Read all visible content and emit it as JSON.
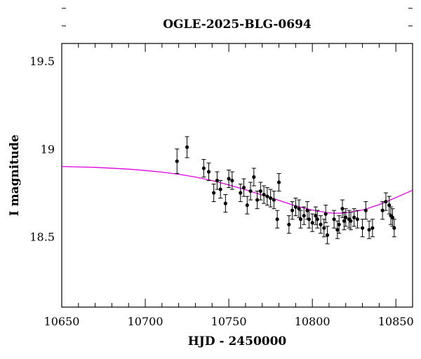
{
  "chart_data": {
    "type": "scatter",
    "title": "OGLE-2025-BLG-0694",
    "xlabel": "HJD - 2450000",
    "ylabel": "I magnitude",
    "xlim": [
      10650,
      10860
    ],
    "ylim": [
      19.6,
      18.1
    ],
    "y_inverted": true,
    "grid": false,
    "legend": "none",
    "x_major_ticks": [
      10650,
      10700,
      10750,
      10800,
      10850
    ],
    "x_tick_labels": [
      "10650",
      "10700",
      "10750",
      "10800",
      "10850"
    ],
    "y_major_ticks": [
      18.5,
      19,
      19.5
    ],
    "y_tick_labels": [
      "18.5",
      "19",
      "19.5"
    ],
    "model_color": "#e000e0",
    "model": {
      "x": [
        10650,
        10670,
        10690,
        10700,
        10710,
        10720,
        10730,
        10740,
        10750,
        10760,
        10770,
        10780,
        10790,
        10800,
        10810,
        10815,
        10820,
        10830,
        10840,
        10850,
        10860
      ],
      "y": [
        18.9,
        18.895,
        18.885,
        18.877,
        18.868,
        18.856,
        18.84,
        18.82,
        18.795,
        18.768,
        18.738,
        18.707,
        18.676,
        18.652,
        18.636,
        18.634,
        18.636,
        18.652,
        18.683,
        18.723,
        18.765
      ]
    },
    "points": {
      "x": [
        10719,
        10725,
        10735,
        10738,
        10741,
        10743,
        10745,
        10748,
        10750,
        10752,
        10757,
        10759,
        10761,
        10763,
        10765,
        10767,
        10769,
        10771,
        10773,
        10775,
        10777,
        10779,
        10780,
        10786,
        10788,
        10790,
        10792,
        10793,
        10795,
        10797,
        10798,
        10800,
        10802,
        10803,
        10805,
        10807,
        10808,
        10809,
        10813,
        10815,
        10816,
        10818,
        10819,
        10820,
        10822,
        10823,
        10825,
        10827,
        10830,
        10832,
        10834,
        10836,
        10842,
        10844,
        10846,
        10847,
        10848,
        10849
      ],
      "y": [
        18.93,
        19.01,
        18.89,
        18.87,
        18.75,
        18.82,
        18.77,
        18.69,
        18.83,
        18.82,
        18.75,
        18.78,
        18.68,
        18.76,
        18.84,
        18.71,
        18.76,
        18.74,
        18.73,
        18.72,
        18.71,
        18.6,
        18.81,
        18.57,
        18.65,
        18.67,
        18.66,
        18.6,
        18.62,
        18.65,
        18.6,
        18.58,
        18.62,
        18.6,
        18.57,
        18.55,
        18.63,
        18.51,
        18.6,
        18.54,
        18.57,
        18.66,
        18.59,
        18.61,
        18.6,
        18.59,
        18.61,
        18.6,
        18.55,
        18.65,
        18.54,
        18.55,
        18.65,
        18.7,
        18.68,
        18.62,
        18.61,
        18.55
      ],
      "err": [
        0.07,
        0.06,
        0.05,
        0.05,
        0.05,
        0.05,
        0.05,
        0.05,
        0.05,
        0.05,
        0.05,
        0.05,
        0.05,
        0.05,
        0.05,
        0.05,
        0.05,
        0.05,
        0.05,
        0.05,
        0.05,
        0.05,
        0.05,
        0.05,
        0.05,
        0.05,
        0.05,
        0.05,
        0.05,
        0.05,
        0.05,
        0.05,
        0.05,
        0.05,
        0.05,
        0.05,
        0.05,
        0.05,
        0.05,
        0.05,
        0.05,
        0.05,
        0.05,
        0.05,
        0.05,
        0.05,
        0.05,
        0.05,
        0.05,
        0.05,
        0.05,
        0.05,
        0.05,
        0.05,
        0.05,
        0.05,
        0.05,
        0.05
      ]
    }
  }
}
